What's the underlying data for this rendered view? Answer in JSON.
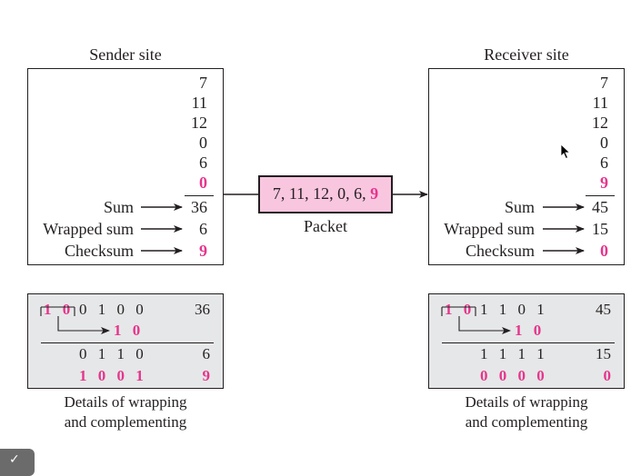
{
  "sender": {
    "title": "Sender site",
    "numbers": [
      "7",
      "11",
      "12",
      "0",
      "6"
    ],
    "checksum_slot": "0",
    "sum_label": "Sum",
    "sum_value": "36",
    "wrapped_label": "Wrapped sum",
    "wrapped_value": "6",
    "checksum_label": "Checksum",
    "checksum_value": "9"
  },
  "receiver": {
    "title": "Receiver site",
    "numbers": [
      "7",
      "11",
      "12",
      "0",
      "6"
    ],
    "checksum_slot": "9",
    "sum_label": "Sum",
    "sum_value": "45",
    "wrapped_label": "Wrapped sum",
    "wrapped_value": "15",
    "checksum_label": "Checksum",
    "checksum_value": "0"
  },
  "packet": {
    "values": "7, 11, 12, 0, 6,",
    "checksum": "9",
    "label": "Packet"
  },
  "sender_detail": {
    "carry": "1 0",
    "rest": "0 1 0 0",
    "value": "36",
    "carry_add": "1 0",
    "wrapped_bits": "0 1 1 0",
    "wrapped_value": "6",
    "complement_bits": "1 0 0 1",
    "complement_value": "9",
    "caption_line1": "Details of wrapping",
    "caption_line2": "and complementing"
  },
  "receiver_detail": {
    "carry": "1 0",
    "rest": "1 1 0 1",
    "value": "45",
    "carry_add": "1 0",
    "wrapped_bits": "1 1 1 1",
    "wrapped_value": "15",
    "complement_bits": "0 0 0 0",
    "complement_value": "0",
    "caption_line1": "Details of wrapping",
    "caption_line2": "and complementing"
  },
  "colors": {
    "highlight": "#e5358c",
    "packet_fill": "#f9c6e0",
    "detail_fill": "#e6e7e8",
    "ink": "#231f20"
  },
  "icons": [
    "arrow-right-icon",
    "mouse-cursor-icon",
    "checkmark-icon"
  ]
}
